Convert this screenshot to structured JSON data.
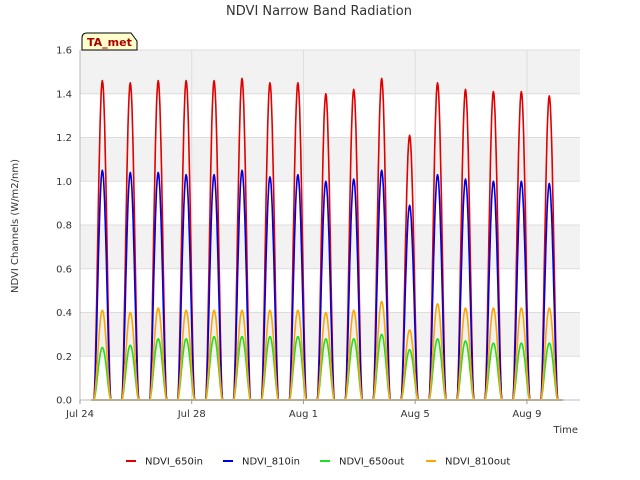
{
  "chart_data": {
    "type": "line",
    "title": "NDVI Narrow Band Radiation",
    "xlabel": "Time",
    "ylabel": "NDVI Channels (W/m2/nm)",
    "ylim": [
      0,
      1.6
    ],
    "xlim": [
      0,
      17.9
    ],
    "y_ticks": [
      "0.0",
      "0.2",
      "0.4",
      "0.6",
      "0.8",
      "1.0",
      "1.2",
      "1.4",
      "1.6"
    ],
    "x_ticks": [
      {
        "label": "Jul 24",
        "day": 0
      },
      {
        "label": "Jul 28",
        "day": 4
      },
      {
        "label": "Aug 1",
        "day": 8
      },
      {
        "label": "Aug 5",
        "day": 12
      },
      {
        "label": "Aug 9",
        "day": 16
      }
    ],
    "badge": "TA_met",
    "legend_position": "bottom",
    "grid": true,
    "x": [
      0.8,
      1.8,
      2.8,
      3.8,
      4.8,
      5.8,
      6.8,
      7.8,
      8.8,
      9.8,
      10.8,
      11.8,
      12.8,
      13.8,
      14.8,
      15.8,
      16.8
    ],
    "series": [
      {
        "name": "NDVI_650in",
        "color": "#e00000",
        "values": [
          1.46,
          1.45,
          1.46,
          1.46,
          1.46,
          1.47,
          1.45,
          1.45,
          1.4,
          1.42,
          1.47,
          1.21,
          1.45,
          1.42,
          1.41,
          1.41,
          1.39
        ]
      },
      {
        "name": "NDVI_810in",
        "color": "#0000dd",
        "values": [
          1.05,
          1.04,
          1.04,
          1.03,
          1.03,
          1.05,
          1.02,
          1.03,
          1.0,
          1.01,
          1.05,
          0.89,
          1.03,
          1.01,
          1.0,
          1.0,
          0.99
        ]
      },
      {
        "name": "NDVI_650out",
        "color": "#22dd22",
        "values": [
          0.24,
          0.25,
          0.28,
          0.28,
          0.29,
          0.29,
          0.29,
          0.29,
          0.28,
          0.28,
          0.3,
          0.23,
          0.28,
          0.27,
          0.26,
          0.26,
          0.26
        ]
      },
      {
        "name": "NDVI_810out",
        "color": "#ffa500",
        "values": [
          0.41,
          0.4,
          0.42,
          0.41,
          0.41,
          0.41,
          0.41,
          0.41,
          0.4,
          0.41,
          0.45,
          0.32,
          0.44,
          0.42,
          0.42,
          0.42,
          0.42
        ]
      }
    ]
  }
}
